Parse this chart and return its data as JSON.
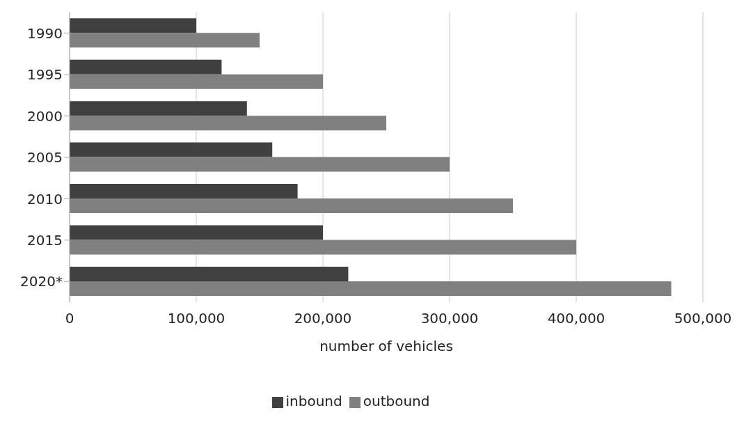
{
  "chart_data": {
    "type": "bar",
    "orientation": "horizontal",
    "xlabel": "number of vehicles",
    "categories": [
      "1990",
      "1995",
      "2000",
      "2005",
      "2010",
      "2015",
      "2020*"
    ],
    "series": [
      {
        "name": "inbound",
        "color": "#404040",
        "values": [
          100000,
          120000,
          140000,
          160000,
          180000,
          200000,
          220000
        ]
      },
      {
        "name": "outbound",
        "color": "#808080",
        "values": [
          150000,
          200000,
          250000,
          300000,
          350000,
          400000,
          475000
        ]
      }
    ],
    "xlim": [
      0,
      500000
    ],
    "xticks": [
      0,
      {
        "value": 100000,
        "label": "100,000"
      },
      {
        "value": 200000,
        "label": "200,000"
      },
      {
        "value": 300000,
        "label": "300,000"
      },
      {
        "value": 400000,
        "label": "400,000"
      },
      {
        "value": 500000,
        "label": "500,000"
      }
    ],
    "grid": "x",
    "legend": "bottom"
  }
}
